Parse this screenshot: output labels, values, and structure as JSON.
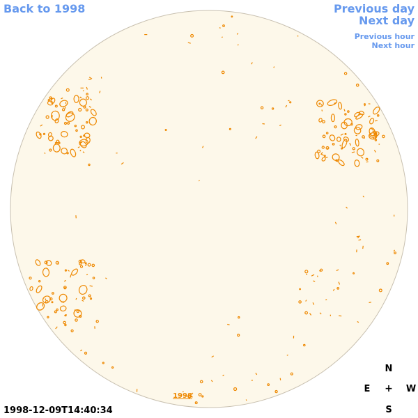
{
  "nav": {
    "back_label": "Back to 1998",
    "prev_day_label": "Previous day",
    "next_day_label": "Next day",
    "prev_hour_label": "Previous hour",
    "next_hour_label": "Next hour"
  },
  "year_label": "1998",
  "timestamp": "1998-12-09T14:40:34",
  "compass": {
    "north": "N",
    "south": "S",
    "east": "E",
    "west": "W",
    "center": "+"
  },
  "colors": {
    "disk_fill": "#fdf8ea",
    "disk_stroke": "#c8c0b0",
    "contour": "#ee8800",
    "link": "#6699ee"
  },
  "icons": {
    "compass_center": "plus-icon"
  }
}
